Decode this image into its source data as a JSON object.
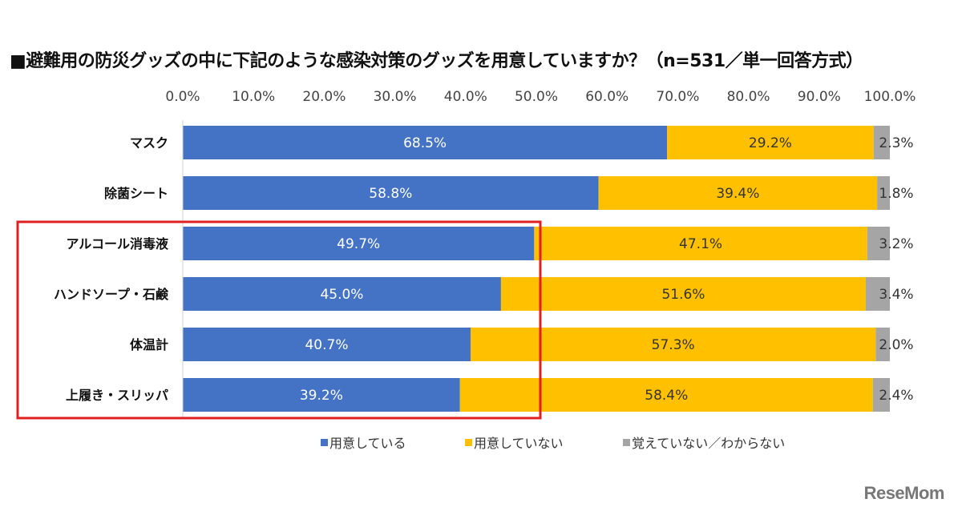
{
  "title": "■避難用の防災グッズの中に下記のような感染対策のグッズを用意していますか？（n=531／単一回答方式）",
  "logo": "ReseMom",
  "chart_data": {
    "type": "bar",
    "orientation": "horizontal",
    "stacked": true,
    "title": "■避難用の防災グッズの中に下記のような感染対策のグッズを用意していますか？（n=531／単一回答方式）",
    "xlim": [
      0,
      100
    ],
    "x_ticks": [
      "0.0%",
      "10.0%",
      "20.0%",
      "30.0%",
      "40.0%",
      "50.0%",
      "60.0%",
      "70.0%",
      "80.0%",
      "90.0%",
      "100.0%"
    ],
    "tick_position": "top",
    "grid": false,
    "legend_position": "bottom",
    "categories": [
      "マスク",
      "除菌シート",
      "アルコール消毒液",
      "ハンドソープ・石鹸",
      "体温計",
      "上履き・スリッパ"
    ],
    "series": [
      {
        "name": "用意している",
        "color": "#4472C4",
        "label_color": "#ffffff",
        "values": [
          68.5,
          58.8,
          49.7,
          45.0,
          40.7,
          39.2
        ]
      },
      {
        "name": "用意していない",
        "color": "#FFC000",
        "label_color": "#333333",
        "values": [
          29.2,
          39.4,
          47.1,
          51.6,
          57.3,
          58.4
        ]
      },
      {
        "name": "覚えていない／わからない",
        "color": "#A5A5A5",
        "label_color": "#333333",
        "values": [
          2.3,
          1.8,
          3.2,
          3.4,
          2.0,
          2.4
        ]
      }
    ],
    "highlight": {
      "categories": [
        "アルコール消毒液",
        "ハンドソープ・石鹸",
        "体温計",
        "上履き・スリッパ"
      ],
      "color": "#E02020"
    }
  }
}
